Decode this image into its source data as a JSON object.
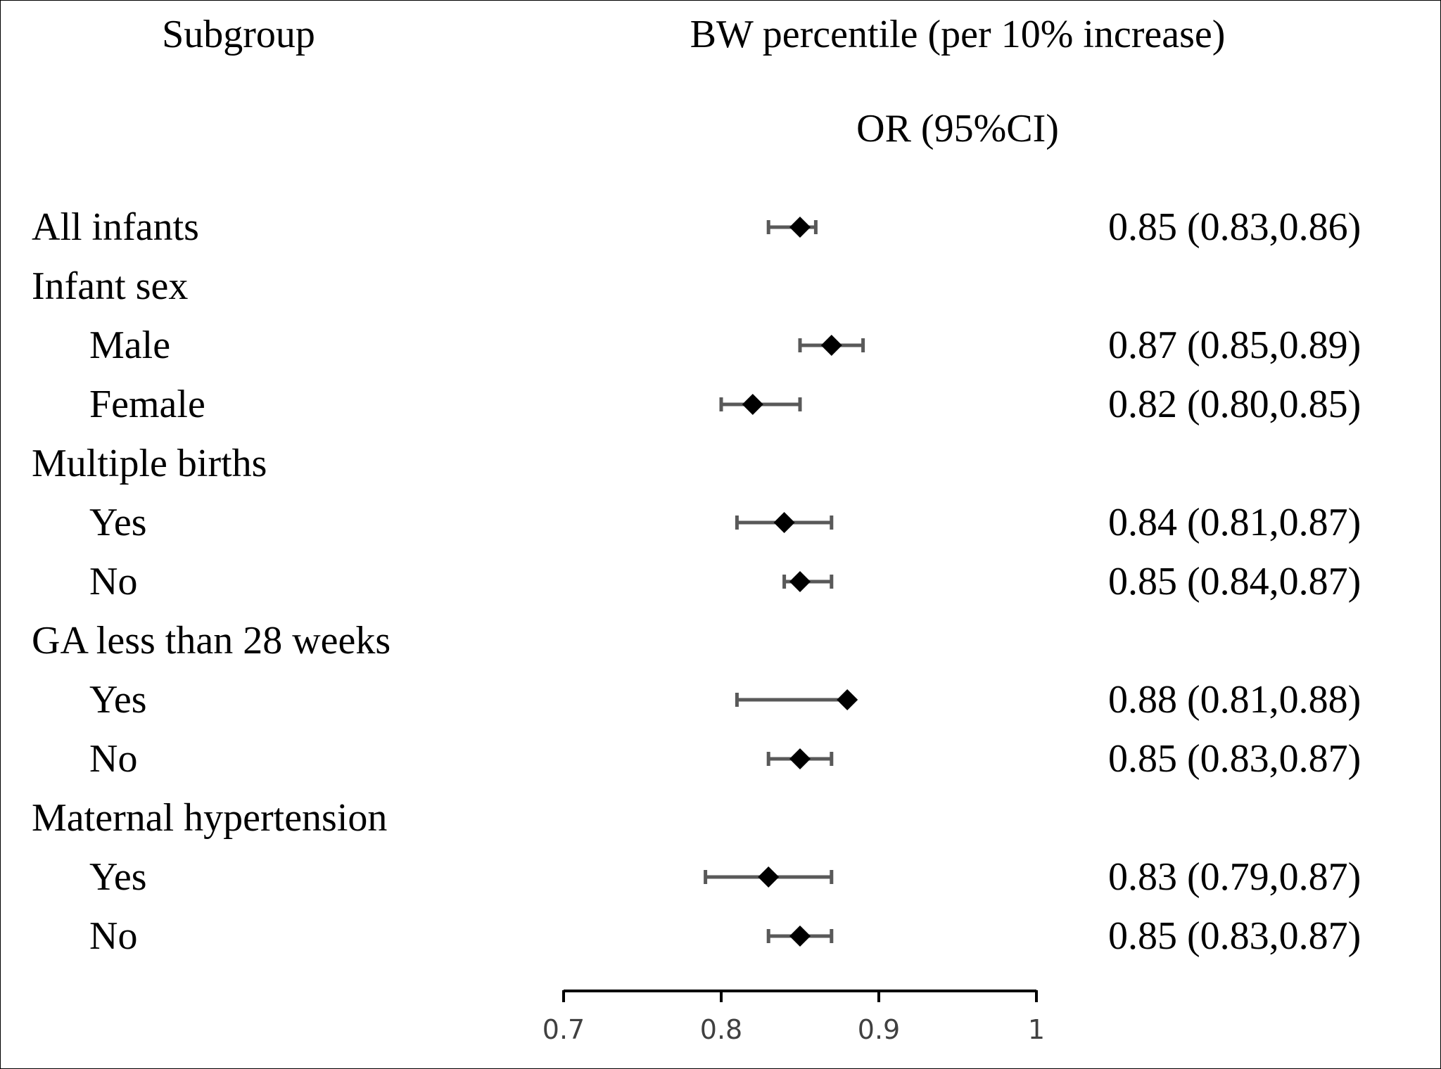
{
  "chart_data": {
    "type": "forest",
    "headers": {
      "subgroup": "Subgroup",
      "exposure": "BW percentile (per 10% increase)",
      "estimate": "OR (95%CI)"
    },
    "rows": [
      {
        "label": "All infants",
        "indent": 0,
        "or": 0.85,
        "lo": 0.83,
        "hi": 0.86,
        "text": "0.85 (0.83,0.86)"
      },
      {
        "label": "Infant sex",
        "indent": 0,
        "header": true
      },
      {
        "label": "Male",
        "indent": 1,
        "or": 0.87,
        "lo": 0.85,
        "hi": 0.89,
        "text": "0.87 (0.85,0.89)"
      },
      {
        "label": "Female",
        "indent": 1,
        "or": 0.82,
        "lo": 0.8,
        "hi": 0.85,
        "text": "0.82 (0.80,0.85)"
      },
      {
        "label": "Multiple births",
        "indent": 0,
        "header": true
      },
      {
        "label": "Yes",
        "indent": 1,
        "or": 0.84,
        "lo": 0.81,
        "hi": 0.87,
        "text": "0.84 (0.81,0.87)"
      },
      {
        "label": "No",
        "indent": 1,
        "or": 0.85,
        "lo": 0.84,
        "hi": 0.87,
        "text": "0.85 (0.84,0.87)"
      },
      {
        "label": "GA less than 28 weeks",
        "indent": 0,
        "header": true
      },
      {
        "label": "Yes",
        "indent": 1,
        "or": 0.88,
        "lo": 0.81,
        "hi": 0.88,
        "text": "0.88 (0.81,0.88)"
      },
      {
        "label": "No",
        "indent": 1,
        "or": 0.85,
        "lo": 0.83,
        "hi": 0.87,
        "text": "0.85 (0.83,0.87)"
      },
      {
        "label": "Maternal hypertension",
        "indent": 0,
        "header": true
      },
      {
        "label": "Yes",
        "indent": 1,
        "or": 0.83,
        "lo": 0.79,
        "hi": 0.87,
        "text": "0.83 (0.79,0.87)"
      },
      {
        "label": "No",
        "indent": 1,
        "or": 0.85,
        "lo": 0.83,
        "hi": 0.87,
        "text": "0.85 (0.83,0.87)"
      }
    ],
    "xlim": [
      0.7,
      1.0
    ],
    "xticks": [
      0.7,
      0.8,
      0.9,
      1.0
    ],
    "xtick_labels": [
      "0.7",
      "0.8",
      "0.9",
      "1"
    ],
    "xlabel": "",
    "ylabel": "",
    "grid": false,
    "colors": {
      "marker": "#000000",
      "ci_line": "#595959",
      "axis": "#000000",
      "tick_label": "#404040",
      "text": "#000000",
      "border": "#000000",
      "background": "#ffffff"
    }
  }
}
